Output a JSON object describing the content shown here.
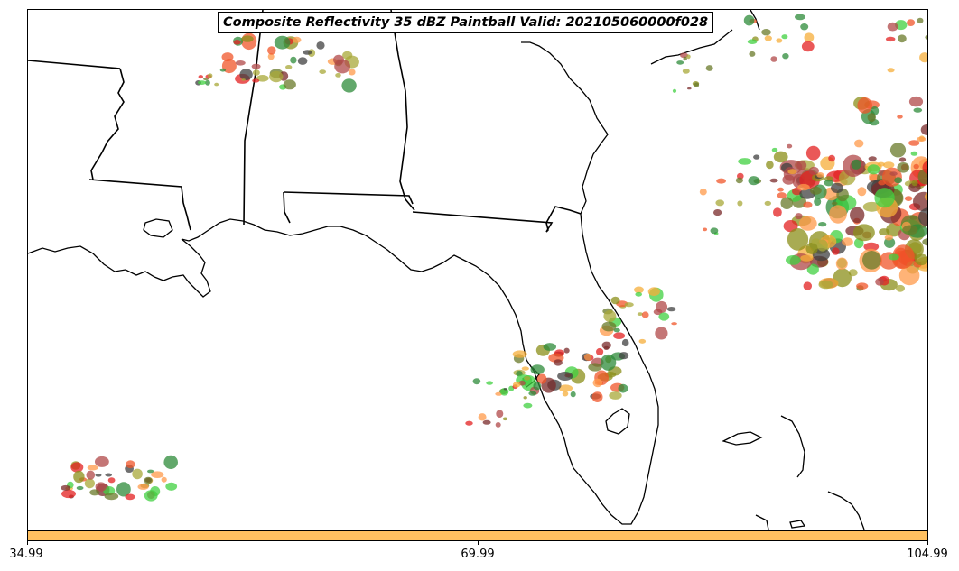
{
  "title": "Composite Reflectivity 35 dBZ Paintball Valid: 202105060000f028",
  "colorbar": {
    "color": "#ffc060",
    "tick_labels": [
      "34.99",
      "69.99",
      "104.99"
    ]
  },
  "member_colors": [
    "#e32020",
    "#f0552a",
    "#ff9a4a",
    "#f5ad3a",
    "#8b8f1a",
    "#a8a838",
    "#40d040",
    "#2e8b3a",
    "#7a2a2a",
    "#b04848",
    "#404040",
    "#6a7a2a"
  ],
  "map": {
    "region": "Southeastern United States and Gulf of Mexico",
    "features": [
      "state boundaries",
      "coastline",
      "reflectivity paintball blobs"
    ]
  }
}
